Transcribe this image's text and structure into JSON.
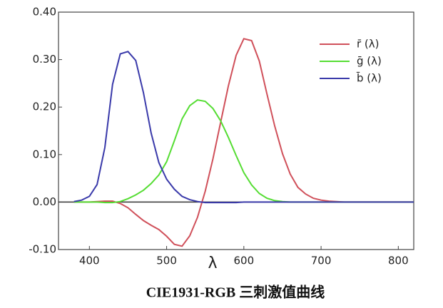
{
  "chart_data": {
    "type": "line",
    "title": "CIE1931-RGB  三刺激值曲线",
    "x_label": "λ",
    "x": [
      380,
      390,
      400,
      410,
      420,
      430,
      440,
      450,
      460,
      470,
      480,
      490,
      500,
      510,
      520,
      530,
      540,
      550,
      560,
      570,
      580,
      590,
      600,
      610,
      620,
      630,
      640,
      650,
      660,
      670,
      680,
      690,
      700,
      710,
      720,
      730,
      740,
      750,
      760,
      770,
      780,
      790,
      800,
      810,
      820
    ],
    "series": [
      {
        "name": "r̄ (λ)",
        "color": "#d0505a",
        "values": [
          0,
          0,
          0,
          0.001,
          0.002,
          0.002,
          -0.003,
          -0.012,
          -0.026,
          -0.039,
          -0.049,
          -0.058,
          -0.072,
          -0.089,
          -0.093,
          -0.071,
          -0.032,
          0.023,
          0.091,
          0.168,
          0.245,
          0.309,
          0.344,
          0.34,
          0.297,
          0.227,
          0.16,
          0.102,
          0.059,
          0.031,
          0.017,
          0.008,
          0.004,
          0.002,
          0.001,
          0,
          0,
          0,
          0,
          0,
          0,
          0,
          0,
          0,
          0
        ]
      },
      {
        "name": "ḡ (λ)",
        "color": "#55dd33",
        "values": [
          0,
          0,
          0,
          0,
          -0.001,
          -0.001,
          0.001,
          0.007,
          0.015,
          0.025,
          0.039,
          0.057,
          0.085,
          0.129,
          0.175,
          0.203,
          0.215,
          0.212,
          0.197,
          0.171,
          0.136,
          0.098,
          0.062,
          0.036,
          0.018,
          0.008,
          0.003,
          0.001,
          0,
          0,
          0,
          0,
          0,
          0,
          0,
          0,
          0,
          0,
          0,
          0,
          0,
          0,
          0,
          0,
          0
        ]
      },
      {
        "name": "b̄ (λ)",
        "color": "#3a3aaa",
        "values": [
          0.001,
          0.004,
          0.012,
          0.037,
          0.115,
          0.248,
          0.312,
          0.317,
          0.298,
          0.23,
          0.145,
          0.083,
          0.048,
          0.027,
          0.012,
          0.005,
          0.001,
          -0.001,
          -0.001,
          -0.001,
          -0.001,
          -0.001,
          0,
          0,
          0,
          0,
          0,
          0,
          0,
          0,
          0,
          0,
          0,
          0,
          0,
          0,
          0,
          0,
          0,
          0,
          0,
          0,
          0,
          0,
          0
        ]
      }
    ],
    "xlim": [
      360,
      820
    ],
    "xticks": [
      400,
      500,
      600,
      700,
      800
    ],
    "ylim": [
      -0.1,
      0.4
    ],
    "yticks": [
      {
        "value": 0.4,
        "label": "0.40"
      },
      {
        "value": 0.3,
        "label": "0.30"
      },
      {
        "value": 0.2,
        "label": "0.20"
      },
      {
        "value": 0.1,
        "label": "0.10"
      },
      {
        "value": 0,
        "label": "0.00"
      },
      {
        "value": -0.1,
        "label": "-0.10"
      }
    ],
    "legend": "upper right",
    "grid": false
  }
}
